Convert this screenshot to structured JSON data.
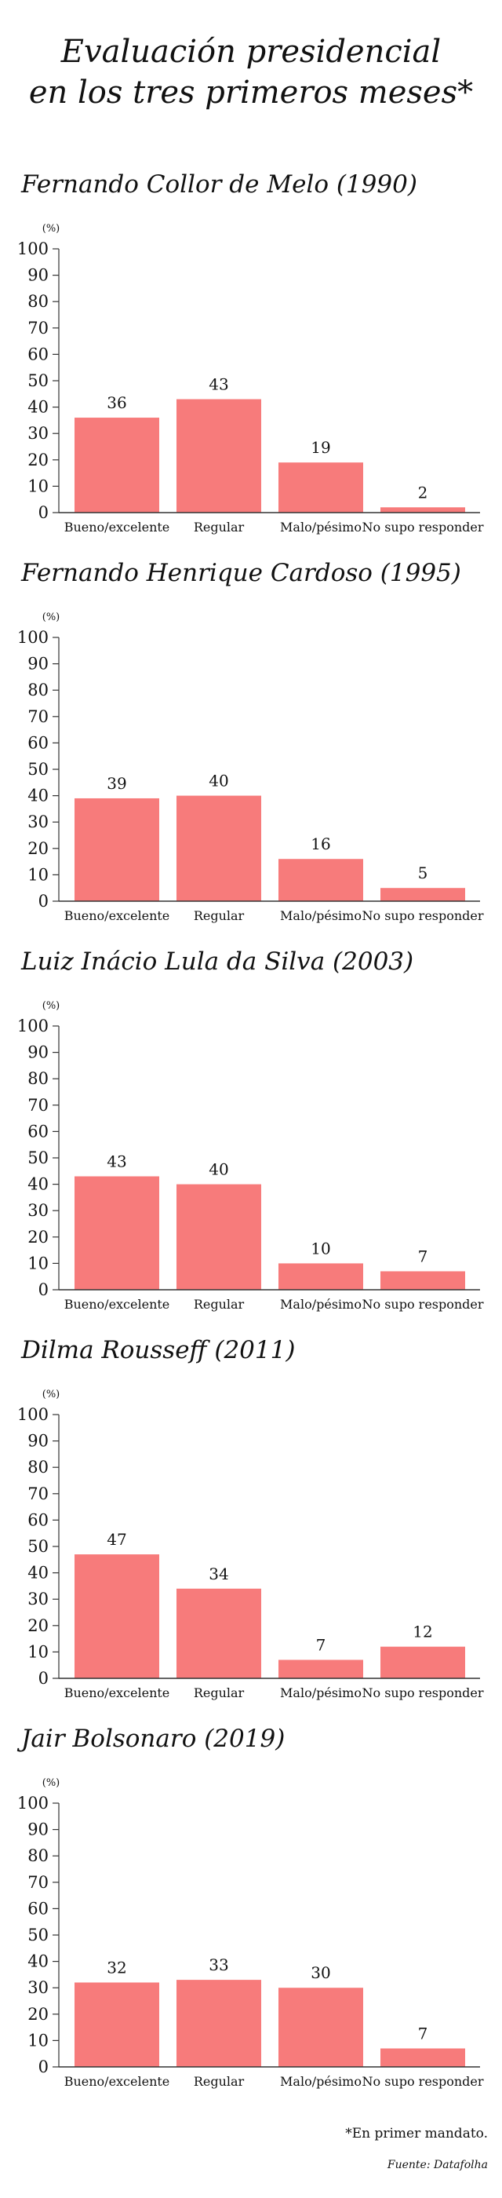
{
  "header": {
    "title_line1": "Evaluación presidencial",
    "title_line2": "en los tres primeros meses*"
  },
  "chart_data": [
    {
      "type": "bar",
      "title": "Fernando Collor de Melo (1990)",
      "ylabel": "(%)",
      "ylim": [
        0,
        100
      ],
      "yticks": [
        "0",
        "10",
        "20",
        "30",
        "40",
        "50",
        "60",
        "70",
        "80",
        "90",
        "100"
      ],
      "categories": [
        "Bueno/excelente",
        "Regular",
        "Malo/pésimo",
        "No supo responder"
      ],
      "values": [
        36,
        43,
        19,
        2
      ],
      "grid": false
    },
    {
      "type": "bar",
      "title": "Fernando Henrique Cardoso (1995)",
      "ylabel": "(%)",
      "ylim": [
        0,
        100
      ],
      "yticks": [
        "0",
        "10",
        "20",
        "30",
        "40",
        "50",
        "60",
        "70",
        "80",
        "90",
        "100"
      ],
      "categories": [
        "Bueno/excelente",
        "Regular",
        "Malo/pésimo",
        "No supo responder"
      ],
      "values": [
        39,
        40,
        16,
        5
      ],
      "grid": false
    },
    {
      "type": "bar",
      "title": "Luiz Inácio Lula da Silva (2003)",
      "ylabel": "(%)",
      "ylim": [
        0,
        100
      ],
      "yticks": [
        "0",
        "10",
        "20",
        "30",
        "40",
        "50",
        "60",
        "70",
        "80",
        "90",
        "100"
      ],
      "categories": [
        "Bueno/excelente",
        "Regular",
        "Malo/pésimo",
        "No supo responder"
      ],
      "values": [
        43,
        40,
        10,
        7
      ],
      "grid": false
    },
    {
      "type": "bar",
      "title": "Dilma Rousseff (2011)",
      "ylabel": "(%)",
      "ylim": [
        0,
        100
      ],
      "yticks": [
        "0",
        "10",
        "20",
        "30",
        "40",
        "50",
        "60",
        "70",
        "80",
        "90",
        "100"
      ],
      "categories": [
        "Bueno/excelente",
        "Regular",
        "Malo/pésimo",
        "No supo responder"
      ],
      "values": [
        47,
        34,
        7,
        12
      ],
      "grid": false
    },
    {
      "type": "bar",
      "title": "Jair Bolsonaro (2019)",
      "ylabel": "(%)",
      "ylim": [
        0,
        100
      ],
      "yticks": [
        "0",
        "10",
        "20",
        "30",
        "40",
        "50",
        "60",
        "70",
        "80",
        "90",
        "100"
      ],
      "categories": [
        "Bueno/excelente",
        "Regular",
        "Malo/pésimo",
        "No supo responder"
      ],
      "values": [
        32,
        33,
        30,
        7
      ],
      "grid": false
    }
  ],
  "colors": {
    "bar": "#f77b7b",
    "axis": "#333333"
  },
  "footer": {
    "note": "*En primer mandato.",
    "source": "Fuente: Datafolha"
  }
}
